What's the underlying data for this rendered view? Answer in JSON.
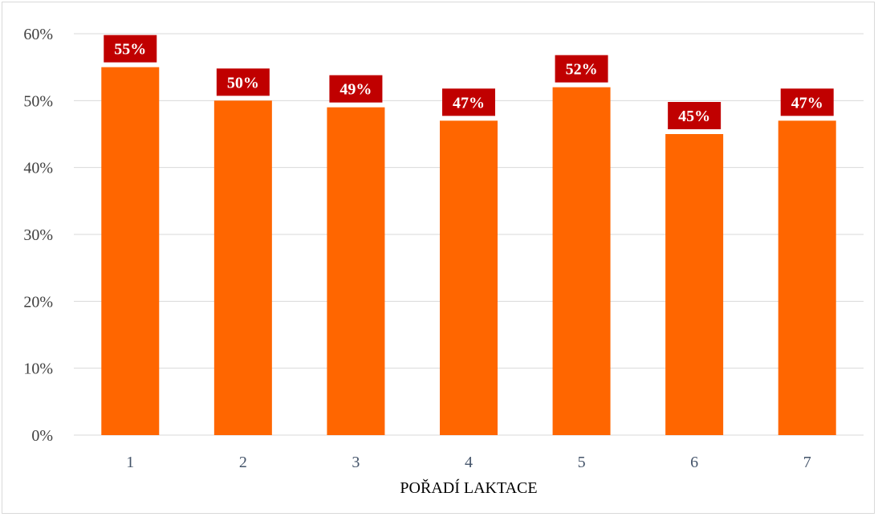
{
  "chart_data": {
    "type": "bar",
    "categories": [
      "1",
      "2",
      "3",
      "4",
      "5",
      "6",
      "7"
    ],
    "values": [
      55,
      50,
      49,
      47,
      52,
      45,
      47
    ],
    "data_labels": [
      "55%",
      "50%",
      "49%",
      "47%",
      "52%",
      "45%",
      "47%"
    ],
    "title": "",
    "xlabel": "POŘADÍ LAKTACE",
    "ylabel": "",
    "ylim": [
      0,
      60
    ],
    "yticks": [
      "0%",
      "10%",
      "20%",
      "30%",
      "40%",
      "50%",
      "60%"
    ],
    "grid": true,
    "legend": "none",
    "colors": {
      "bar": "#ff6600",
      "label_bg": "#c00000",
      "label_text": "#ffffff",
      "grid": "#d9d9d9"
    }
  }
}
